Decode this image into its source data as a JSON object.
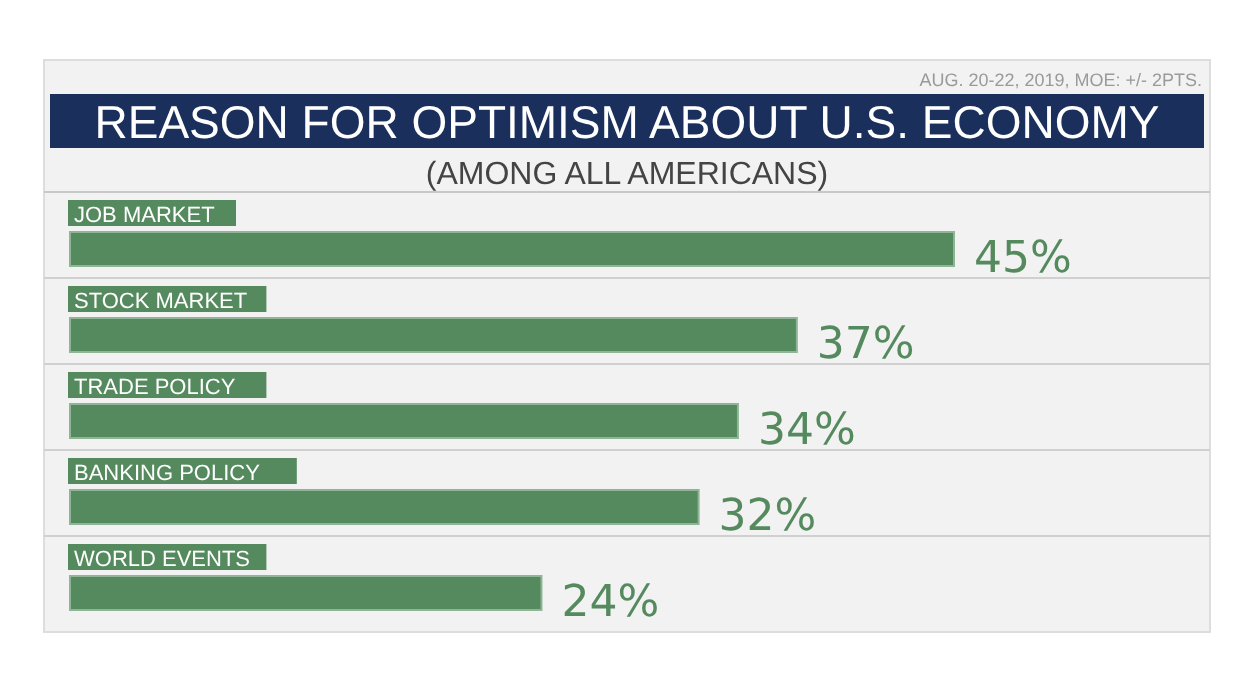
{
  "chart_data": {
    "type": "bar",
    "orientation": "horizontal",
    "title": "REASON FOR OPTIMISM ABOUT U.S. ECONOMY",
    "subtitle": "(AMONG ALL AMERICANS)",
    "annotations": [
      "AUG. 20-22, 2019, MOE: +/- 2PTS."
    ],
    "categories": [
      "JOB MARKET",
      "STOCK MARKET",
      "TRADE POLICY",
      "BANKING POLICY",
      "WORLD EVENTS"
    ],
    "values": [
      45,
      37,
      34,
      32,
      24
    ],
    "color": "#558a5f",
    "value_labels": [
      "45%",
      "37%",
      "34%",
      "32%",
      "24%"
    ]
  }
}
